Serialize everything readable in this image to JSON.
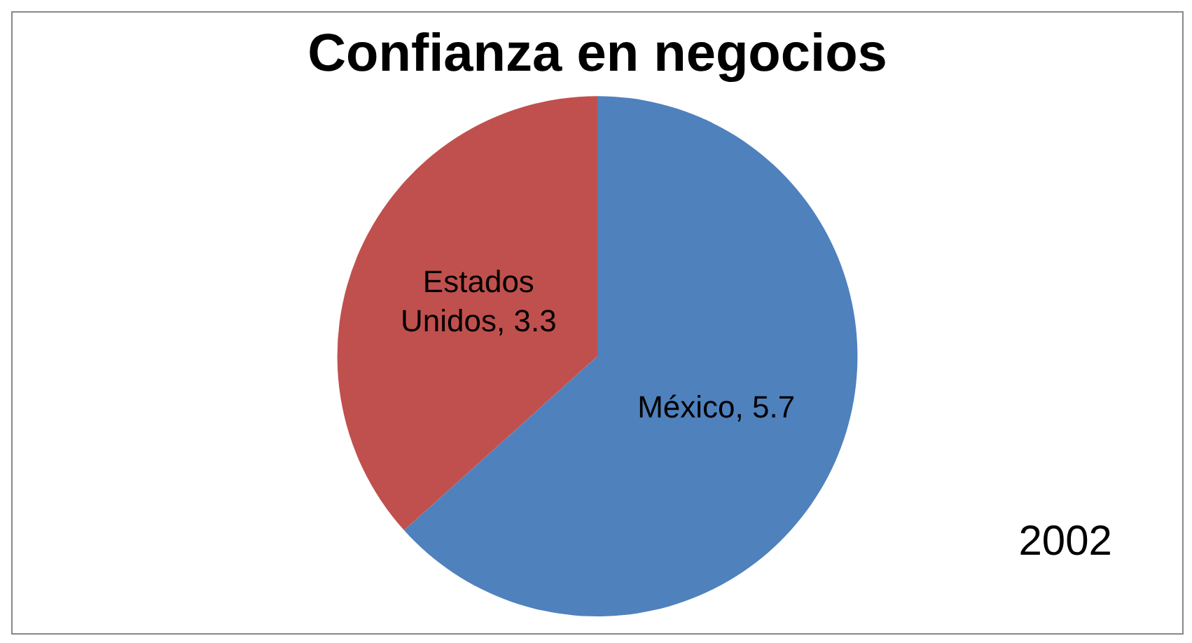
{
  "chart_data": {
    "type": "pie",
    "title": "Confianza en negocios",
    "categories": [
      "México",
      "Estados Unidos"
    ],
    "values": [
      5.7,
      3.3
    ],
    "value_labels": [
      ", 5.7",
      ", 3.3"
    ],
    "colors": [
      "#4f81bd",
      "#c0504d"
    ],
    "annotations": [
      "2002"
    ]
  }
}
